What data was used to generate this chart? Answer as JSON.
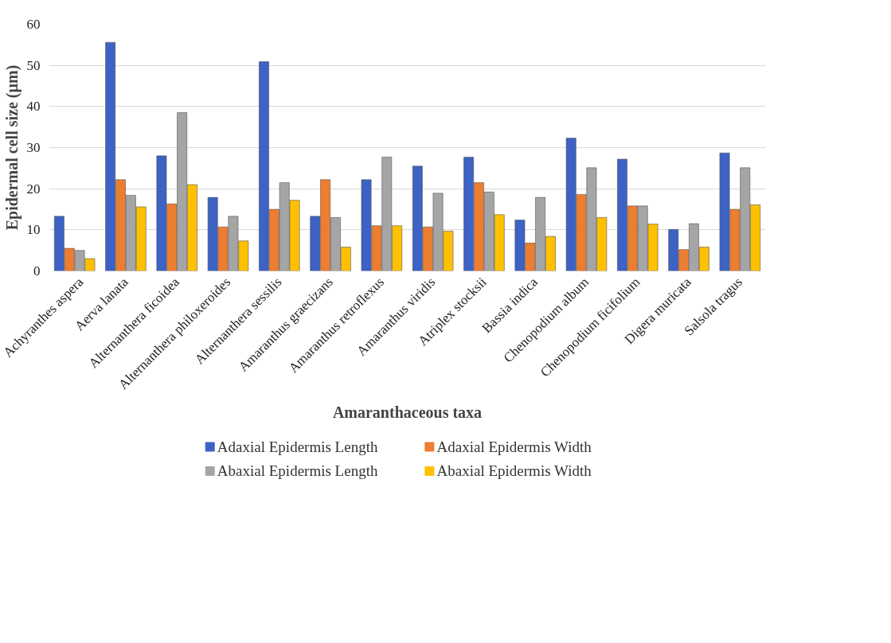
{
  "chart_data": {
    "type": "bar",
    "xlabel": "Amaranthaceous taxa",
    "ylabel": "Epidermal cell size (µm)",
    "categories": [
      "Achyranthes aspera",
      "Aerva lanata",
      "Alternanthera ficoidea",
      "Alternanthera philoxeroides",
      "Alternanthera sessilis",
      "Amaranthus graecizans",
      "Amaranthus retroflexus",
      "Amaranthus viridis",
      "Atriplex stocksii",
      "Bassia indica",
      "Chenopodium album",
      "Chenopodium ficifolium",
      "Digera muricata",
      "Salsola tragus"
    ],
    "series": [
      {
        "name": "Adaxial Epidermis Length",
        "color": "#3b62c4",
        "values": [
          13.3,
          55.6,
          28,
          17.9,
          50.9,
          13.3,
          22.2,
          25.5,
          27.7,
          12.4,
          32.3,
          27.2,
          10.1,
          28.7
        ]
      },
      {
        "name": "Adaxial Epidermis Width",
        "color": "#ed7d31",
        "values": [
          5.5,
          22.2,
          16.3,
          10.7,
          15,
          22.2,
          11,
          10.7,
          21.5,
          6.8,
          18.6,
          15.8,
          5.2,
          15
        ]
      },
      {
        "name": "Abaxial Epidermis Length",
        "color": "#a5a5a5",
        "values": [
          5,
          18.4,
          38.5,
          13.3,
          21.5,
          13,
          27.7,
          18.9,
          19.2,
          17.9,
          25.1,
          15.8,
          11.5,
          25.1
        ]
      },
      {
        "name": "Abaxial Epidermis Width",
        "color": "#ffc000",
        "values": [
          3,
          15.6,
          21,
          7.3,
          17.2,
          5.8,
          11,
          9.7,
          13.7,
          8.4,
          13,
          11.4,
          5.8,
          16.1
        ]
      }
    ],
    "ylim": [
      0,
      60
    ],
    "yticks": [
      0,
      10,
      20,
      30,
      40,
      50,
      60
    ],
    "grid": "y",
    "legend": "bottom"
  }
}
